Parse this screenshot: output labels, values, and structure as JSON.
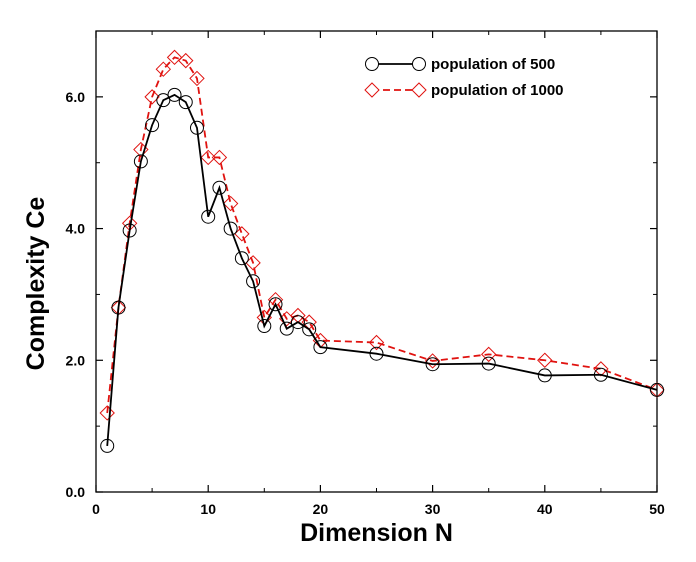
{
  "chart_data": {
    "type": "line",
    "title": "",
    "xlabel": "Dimension N",
    "ylabel": "Complexity Ce",
    "xlim": [
      0,
      50
    ],
    "ylim": [
      0,
      7
    ],
    "xticks": [
      0,
      10,
      20,
      30,
      40,
      50
    ],
    "xtick_labels": [
      "0",
      "10",
      "20",
      "30",
      "40",
      "50"
    ],
    "yticks": [
      0,
      2,
      4,
      6
    ],
    "ytick_labels": [
      "0.0",
      "2.0",
      "4.0",
      "6.0"
    ],
    "legend_position": "top-right",
    "series": [
      {
        "name": "population of 500",
        "color": "#000000",
        "line_style": "solid",
        "marker": "circle",
        "x": [
          1,
          2,
          3,
          4,
          5,
          6,
          7,
          8,
          9,
          10,
          11,
          12,
          13,
          14,
          15,
          16,
          17,
          18,
          19,
          20,
          25,
          30,
          35,
          40,
          45,
          50
        ],
        "y": [
          0.7,
          2.8,
          3.97,
          5.02,
          5.57,
          5.95,
          6.03,
          5.92,
          5.53,
          4.18,
          4.62,
          4.0,
          3.55,
          3.2,
          2.52,
          2.85,
          2.48,
          2.58,
          2.47,
          2.2,
          2.1,
          1.94,
          1.95,
          1.77,
          1.78,
          1.55
        ]
      },
      {
        "name": "population of 1000",
        "color": "#e0120f",
        "line_style": "dashed",
        "marker": "diamond",
        "x": [
          1,
          2,
          3,
          4,
          5,
          6,
          7,
          8,
          9,
          10,
          11,
          12,
          13,
          14,
          15,
          16,
          17,
          18,
          19,
          20,
          25,
          30,
          35,
          40,
          45,
          50
        ],
        "y": [
          1.2,
          2.8,
          4.08,
          5.2,
          6.0,
          6.42,
          6.6,
          6.55,
          6.28,
          5.08,
          5.08,
          4.38,
          3.92,
          3.48,
          2.65,
          2.92,
          2.63,
          2.68,
          2.58,
          2.3,
          2.27,
          1.99,
          2.09,
          2.0,
          1.87,
          1.55
        ]
      }
    ]
  }
}
